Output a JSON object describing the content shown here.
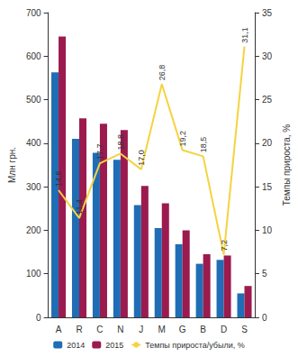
{
  "chart_data": {
    "type": "bar",
    "categories": [
      "A",
      "R",
      "C",
      "N",
      "J",
      "M",
      "G",
      "B",
      "D",
      "S"
    ],
    "ylabel": "Млн грн.",
    "y2label": "Темпы прироста, %",
    "ylim": [
      0,
      700
    ],
    "yticks": [
      0,
      100,
      200,
      300,
      400,
      500,
      600,
      700
    ],
    "y2lim": [
      0,
      35
    ],
    "y2ticks": [
      0,
      5,
      10,
      15,
      20,
      25,
      30,
      35
    ],
    "grid": false,
    "legend": "bottom",
    "series": [
      {
        "name": "2014",
        "color": "#1f6db5",
        "values": [
          563,
          410,
          378,
          362,
          258,
          205,
          168,
          123,
          132,
          55
        ]
      },
      {
        "name": "2015",
        "color": "#9b1b4f",
        "values": [
          645,
          457,
          445,
          430,
          302,
          262,
          200,
          145,
          142,
          72
        ]
      },
      {
        "name": "Темпы прироста/убыли, %",
        "type": "line",
        "axis": "y2",
        "color": "#f5d33f",
        "data_labels": true,
        "values": [
          14.6,
          11.4,
          17.7,
          18.8,
          17.0,
          26.8,
          19.2,
          18.5,
          7.2,
          31.1
        ],
        "value_labels": [
          "14,6",
          "11,4",
          "17,7",
          "18,8",
          "17,0",
          "26,8",
          "19,2",
          "18,5",
          "7,2",
          "31,1"
        ]
      }
    ]
  }
}
